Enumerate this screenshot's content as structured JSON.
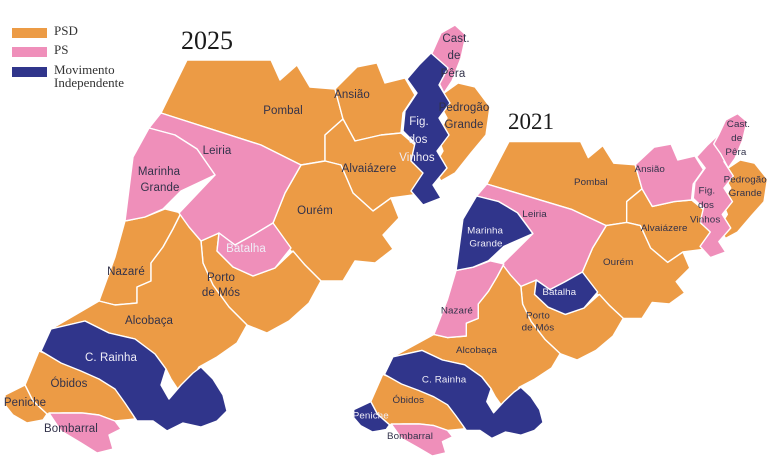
{
  "type": "choropleth_map_comparison",
  "parties": {
    "PSD": {
      "name": "PSD",
      "color": "#EC9B45"
    },
    "PS": {
      "name": "PS",
      "color": "#EF8FBA"
    },
    "MI": {
      "name": "Movimento Independente",
      "color": "#30358B"
    }
  },
  "colors": {
    "background": "#ffffff",
    "border": "#ffffff",
    "label_dark": "#32324a",
    "label_light": "#efedf7",
    "title_text": "#1a1a1a",
    "legend_text": "#333333"
  },
  "legend": {
    "items": [
      {
        "party": "PSD",
        "label": "PSD"
      },
      {
        "party": "PS",
        "label": "PS"
      },
      {
        "party": "MI",
        "label": "Movimento Independente"
      }
    ]
  },
  "municipalities": [
    {
      "id": "pombal",
      "name": "Pombal",
      "lines": [
        "Pombal"
      ]
    },
    {
      "id": "ansiao",
      "name": "Ansião",
      "lines": [
        "Ansião"
      ]
    },
    {
      "id": "alvaiazere",
      "name": "Alvaiázere",
      "lines": [
        "Alvaiázere"
      ]
    },
    {
      "id": "figvinhos",
      "name": "Fig. dos Vinhos",
      "lines": [
        "Fig.",
        "dos",
        "Vinhos"
      ]
    },
    {
      "id": "castpera",
      "name": "Cast. de Pêra",
      "lines": [
        "Cast.",
        "de",
        "Pêra"
      ]
    },
    {
      "id": "pedrogao",
      "name": "Pedrogão Grande",
      "lines": [
        "Pedrogão",
        "Grande"
      ]
    },
    {
      "id": "ourem",
      "name": "Ourém",
      "lines": [
        "Ourém"
      ]
    },
    {
      "id": "leiria",
      "name": "Leiria",
      "lines": [
        "Leiria"
      ]
    },
    {
      "id": "marinhagrande",
      "name": "Marinha Grande",
      "lines": [
        "Marinha",
        "Grande"
      ]
    },
    {
      "id": "batalha",
      "name": "Batalha",
      "lines": [
        "Batalha"
      ]
    },
    {
      "id": "portodemos",
      "name": "Porto de Mós",
      "lines": [
        "Porto",
        "de Mós"
      ]
    },
    {
      "id": "nazare",
      "name": "Nazaré",
      "lines": [
        "Nazaré"
      ]
    },
    {
      "id": "alcobaca",
      "name": "Alcobaça",
      "lines": [
        "Alcobaça"
      ]
    },
    {
      "id": "crainha",
      "name": "C. Rainha",
      "lines": [
        "C. Rainha"
      ]
    },
    {
      "id": "obidos",
      "name": "Óbidos",
      "lines": [
        "Óbidos"
      ]
    },
    {
      "id": "peniche",
      "name": "Peniche",
      "lines": [
        "Peniche"
      ]
    },
    {
      "id": "bombarral",
      "name": "Bombarral",
      "lines": [
        "Bombarral"
      ]
    }
  ],
  "maps": [
    {
      "title": "2025",
      "results": {
        "pombal": {
          "party": "PSD",
          "label": "dark"
        },
        "ansiao": {
          "party": "PSD",
          "label": "dark"
        },
        "alvaiazere": {
          "party": "PSD",
          "label": "dark"
        },
        "figvinhos": {
          "party": "MI",
          "label": "light"
        },
        "castpera": {
          "party": "PS",
          "label": "dark"
        },
        "pedrogao": {
          "party": "PSD",
          "label": "dark"
        },
        "ourem": {
          "party": "PSD",
          "label": "dark"
        },
        "leiria": {
          "party": "PS",
          "label": "dark"
        },
        "marinhagrande": {
          "party": "PS",
          "label": "dark"
        },
        "batalha": {
          "party": "PS",
          "label": "light"
        },
        "portodemos": {
          "party": "PSD",
          "label": "dark"
        },
        "nazare": {
          "party": "PSD",
          "label": "dark"
        },
        "alcobaca": {
          "party": "PSD",
          "label": "dark"
        },
        "crainha": {
          "party": "MI",
          "label": "light"
        },
        "obidos": {
          "party": "PSD",
          "label": "dark"
        },
        "peniche": {
          "party": "PSD",
          "label": "dark"
        },
        "bombarral": {
          "party": "PS",
          "label": "dark"
        }
      }
    },
    {
      "title": "2021",
      "results": {
        "pombal": {
          "party": "PSD",
          "label": "dark"
        },
        "ansiao": {
          "party": "PS",
          "label": "dark"
        },
        "alvaiazere": {
          "party": "PSD",
          "label": "dark"
        },
        "figvinhos": {
          "party": "PS",
          "label": "dark"
        },
        "castpera": {
          "party": "PS",
          "label": "dark"
        },
        "pedrogao": {
          "party": "PSD",
          "label": "dark"
        },
        "ourem": {
          "party": "PSD",
          "label": "dark"
        },
        "leiria": {
          "party": "PS",
          "label": "dark"
        },
        "marinhagrande": {
          "party": "MI",
          "label": "light"
        },
        "batalha": {
          "party": "MI",
          "label": "light"
        },
        "portodemos": {
          "party": "PSD",
          "label": "dark"
        },
        "nazare": {
          "party": "PS",
          "label": "dark"
        },
        "alcobaca": {
          "party": "PSD",
          "label": "dark"
        },
        "crainha": {
          "party": "MI",
          "label": "light"
        },
        "obidos": {
          "party": "PSD",
          "label": "dark"
        },
        "peniche": {
          "party": "MI",
          "label": "light"
        },
        "bombarral": {
          "party": "PS",
          "label": "dark"
        }
      }
    }
  ]
}
